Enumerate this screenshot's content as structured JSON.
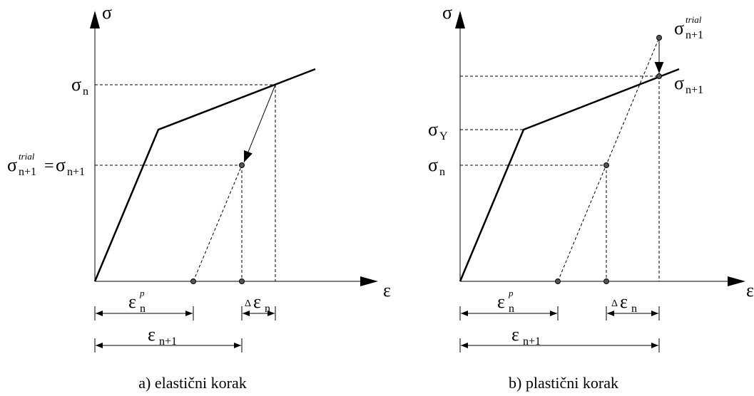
{
  "panels": [
    {
      "y_axis": "σ",
      "x_axis": "ε",
      "caption": "a) elastični korak",
      "labels": [
        [
          {
            "base": "σ",
            "sub": "n"
          }
        ],
        [
          {
            "base": "σ",
            "sup": "trial",
            "sub": "n+1"
          },
          {
            "base": "="
          },
          {
            "base": "σ",
            "sub": "n+1"
          }
        ],
        [
          {
            "base": "ε",
            "sup": "p",
            "sub": "n"
          }
        ],
        [
          {
            "base": "Δ"
          },
          {
            "base": "ε",
            "sub": "n"
          }
        ],
        [
          {
            "base": "ε",
            "sub": "n+1"
          }
        ]
      ]
    },
    {
      "y_axis": "σ",
      "x_axis": "ε",
      "caption": "b) plastični korak",
      "labels": [
        [
          {
            "base": "σ",
            "sup": "trial",
            "sub": "n+1"
          }
        ],
        [
          {
            "base": "σ",
            "sub": "n+1"
          }
        ],
        [
          {
            "base": "σ",
            "sub": "Y"
          }
        ],
        [
          {
            "base": "σ",
            "sub": "n"
          }
        ],
        [
          {
            "base": "ε",
            "sup": "p",
            "sub": "n"
          }
        ],
        [
          {
            "base": "Δ"
          },
          {
            "base": "ε",
            "sub": "n"
          }
        ],
        [
          {
            "base": "ε",
            "sub": "n+1"
          }
        ]
      ]
    }
  ]
}
